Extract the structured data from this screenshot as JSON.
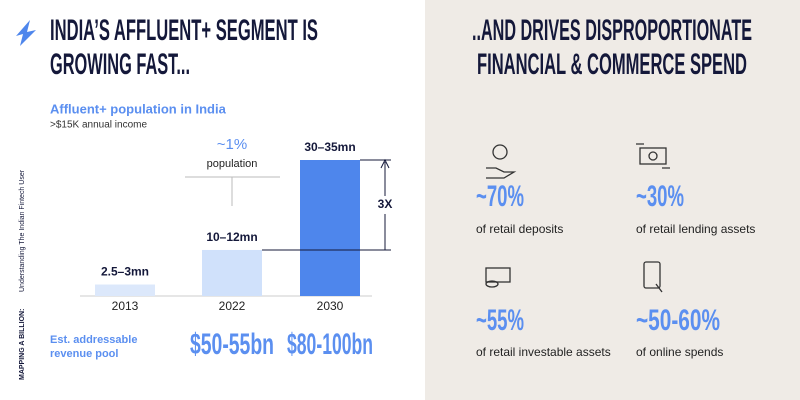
{
  "header": {
    "left_title": [
      "INDIA’S AFFLUENT+ SEGMENT IS",
      "GROWING FAST..."
    ],
    "right_title": [
      "..AND DRIVES DISPROPORTIONATE",
      "FINANCIAL & COMMERCE SPEND"
    ]
  },
  "side_label": {
    "bold": "MAPPING A BILLION:",
    "text": "Understanding The Indian Fintech User"
  },
  "chart_data": {
    "type": "bar",
    "title": "Affluent+ population in India",
    "subtitle": ">$15K annual income",
    "categories": [
      "2013",
      "2022",
      "2030"
    ],
    "values": [
      2.75,
      11,
      32.5
    ],
    "value_labels": [
      "2.5–3mn",
      "10–12mn",
      "30–35mn"
    ],
    "colors": [
      "#dce8fb",
      "#d0e1fb",
      "#4e86ec"
    ],
    "annotations": {
      "share": "~1%",
      "share_label": "population",
      "multiple": "3X"
    }
  },
  "revenue": {
    "label": [
      "Est. addressable",
      "revenue pool"
    ],
    "values": [
      "$50-55bn",
      "$80-100bn"
    ]
  },
  "stats": [
    {
      "value": "~70%",
      "label": "of retail deposits"
    },
    {
      "value": "~30%",
      "label": "of retail lending assets"
    },
    {
      "value": "~55%",
      "label": "of retail investable assets"
    },
    {
      "value": "~50-60%",
      "label": "of online spends"
    }
  ]
}
